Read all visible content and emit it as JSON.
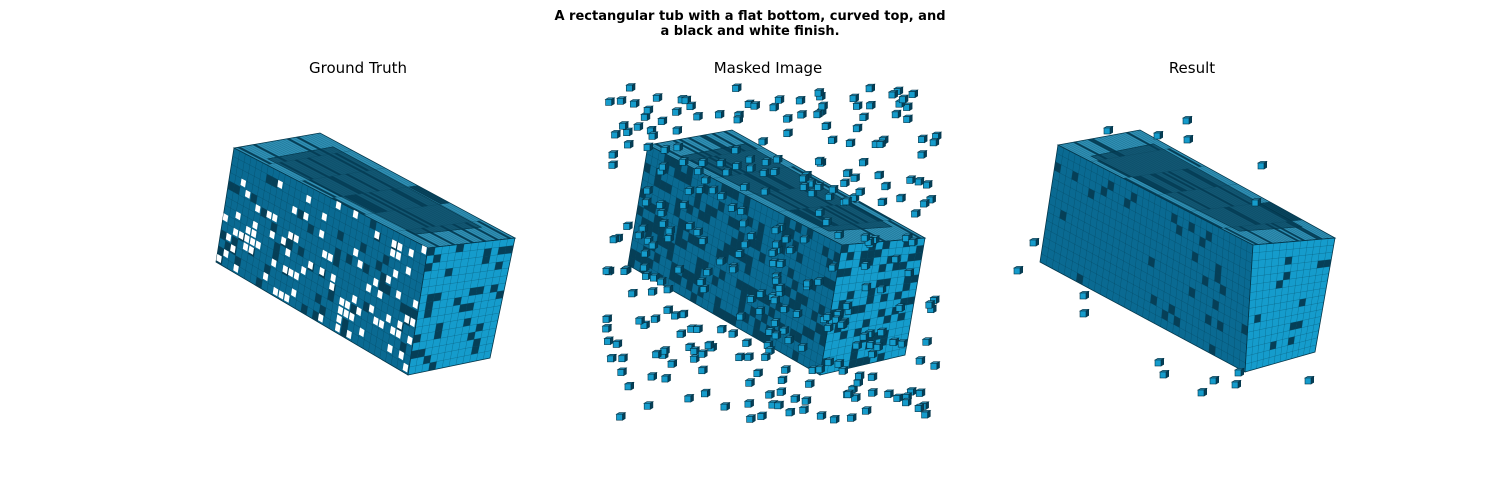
{
  "figure": {
    "title_line1": "A rectangular tub with a flat bottom, curved top, and",
    "title_line2": "a black and white finish."
  },
  "panels": [
    {
      "id": "ground-truth",
      "title": "Ground Truth"
    },
    {
      "id": "masked-image",
      "title": "Masked Image"
    },
    {
      "id": "result",
      "title": "Result"
    }
  ],
  "colors": {
    "voxel_front": "#0a6a92",
    "voxel_side": "#159ccc",
    "voxel_top": "#2f8fb4",
    "voxel_edge": "#03364a",
    "voxel_dark": "#063f57",
    "background": "#ffffff"
  }
}
